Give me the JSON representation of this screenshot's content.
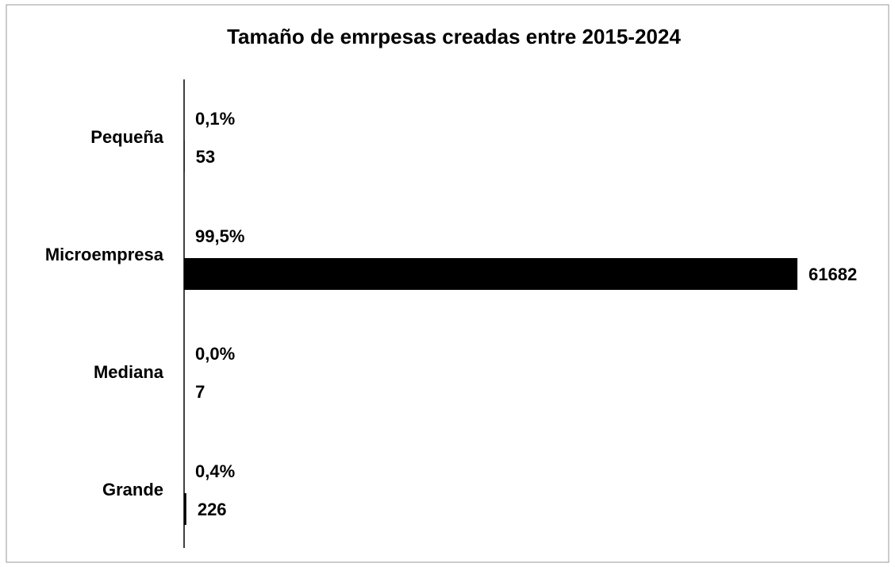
{
  "chart_data": {
    "type": "bar",
    "orientation": "horizontal",
    "title": "Tamaño de emrpesas creadas entre 2015-2024",
    "categories": [
      "Pequeña",
      "Microempresa",
      "Mediana",
      "Grande"
    ],
    "values": [
      53,
      61682,
      7,
      226
    ],
    "shares": [
      0.1,
      99.5,
      0.0,
      0.4
    ],
    "share_labels": [
      "0,1%",
      "99,5%",
      "0,0%",
      "0,4%"
    ],
    "color": "#000000"
  }
}
